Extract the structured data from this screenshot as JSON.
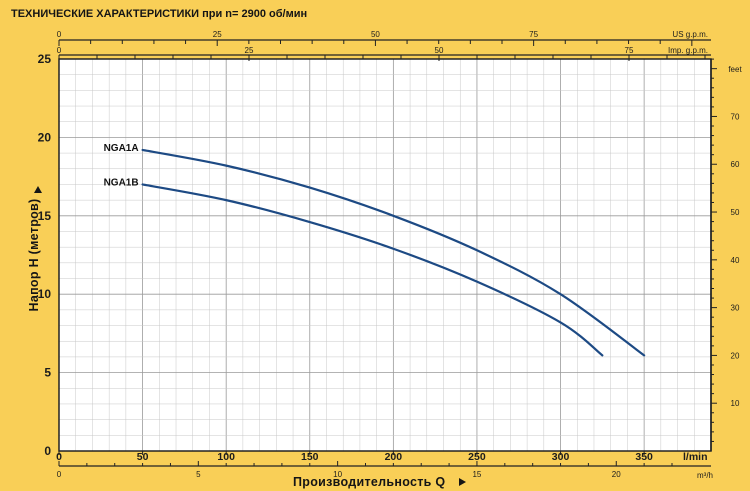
{
  "header": {
    "title": "ТЕХНИЧЕСКИЕ ХАРАКТЕРИСТИКИ при n= 2900 об/мин"
  },
  "axes": {
    "y_title": "Напор H  (метров)",
    "x_title": "Производительность Q",
    "units": {
      "us": "US g.p.m.",
      "imp": "Imp. g.p.m.",
      "feet": "feet",
      "lmin": "l/min",
      "m3h": "m³/h"
    },
    "y_ticks": [
      "5",
      "10",
      "15",
      "20",
      "25"
    ],
    "y_zero": "0",
    "lmin_ticks": [
      "0",
      "50",
      "100",
      "150",
      "200",
      "250",
      "300",
      "350"
    ],
    "m3h_ticks": [
      "0",
      "5",
      "10",
      "15",
      "20"
    ],
    "us_ticks": [
      "0",
      "25",
      "50",
      "75"
    ],
    "imp_ticks": [
      "0",
      "25",
      "50",
      "75"
    ],
    "feet_ticks": [
      "10",
      "20",
      "30",
      "40",
      "50",
      "60",
      "70"
    ]
  },
  "colors": {
    "background": "#f9cf57",
    "plot_area": "#ffffff",
    "curve": "#1d4a84",
    "grid": "#c8c8c8"
  },
  "chart_data": {
    "type": "line",
    "title": "ТЕХНИЧЕСКИЕ ХАРАКТЕРИСТИКИ при n= 2900 об/мин",
    "xlabel": "Производительность Q",
    "ylabel": "Напор H  (метров)",
    "xlim": [
      0,
      390
    ],
    "ylim": [
      0,
      25
    ],
    "x_unit": "l/min",
    "y_unit": "m",
    "grid": true,
    "series": [
      {
        "name": "NGA1A",
        "points": [
          [
            50,
            19.2
          ],
          [
            100,
            18.2
          ],
          [
            150,
            16.8
          ],
          [
            200,
            15.0
          ],
          [
            250,
            12.8
          ],
          [
            300,
            10.0
          ],
          [
            350,
            6.1
          ]
        ]
      },
      {
        "name": "NGA1B",
        "points": [
          [
            50,
            17.0
          ],
          [
            100,
            16.0
          ],
          [
            150,
            14.6
          ],
          [
            200,
            12.9
          ],
          [
            250,
            10.8
          ],
          [
            300,
            8.2
          ],
          [
            325,
            6.1
          ]
        ]
      }
    ]
  }
}
